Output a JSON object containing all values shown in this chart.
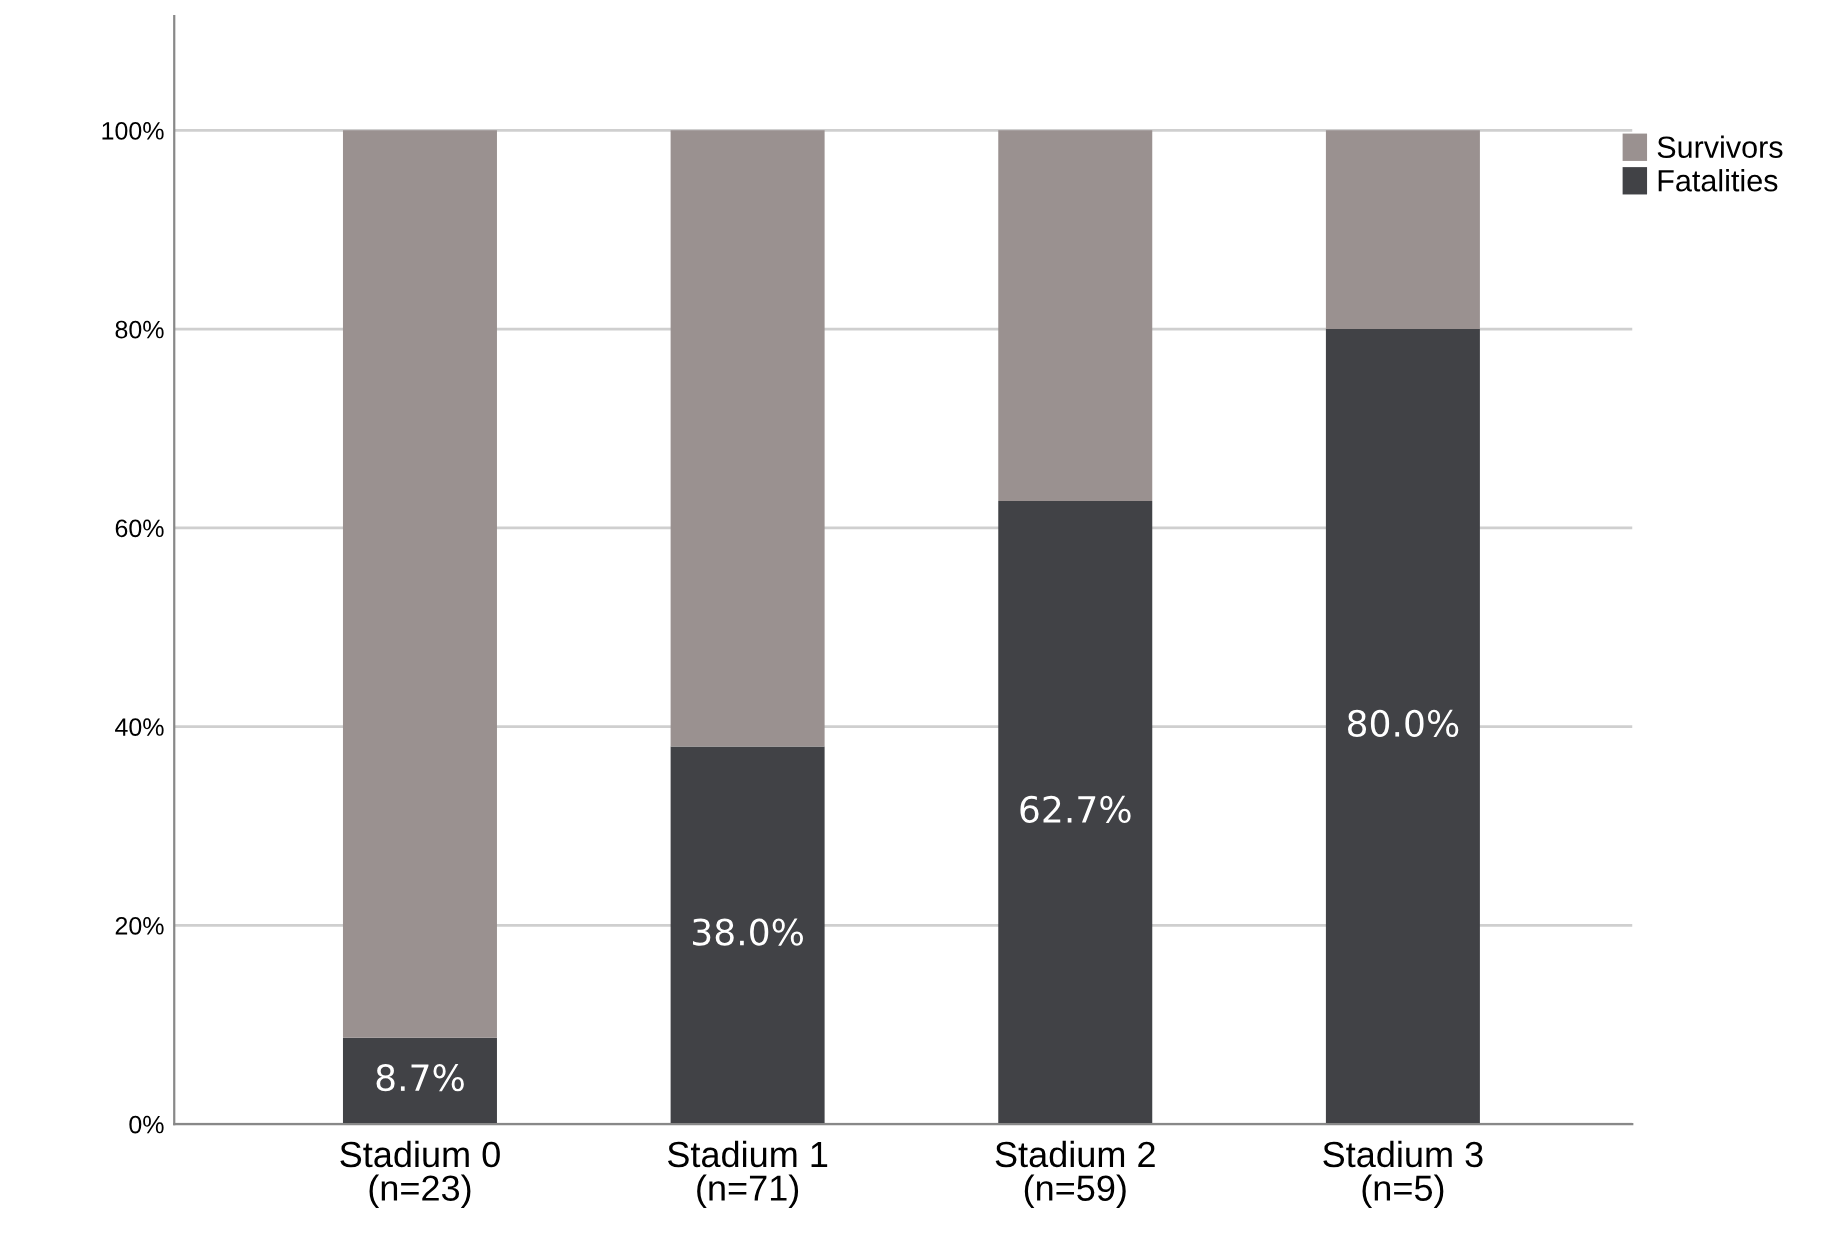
{
  "chart_data": {
    "type": "bar",
    "stacked": true,
    "categories": [
      "Stadium 0\n(n=23)",
      "Stadium 1\n(n=71)",
      "Stadium 2\n(n=59)",
      "Stadium 3\n(n=5)"
    ],
    "series": [
      {
        "name": "Fatalities",
        "color": "#414246",
        "values": [
          8.7,
          38.0,
          62.7,
          80.0
        ],
        "value_labels": [
          "8.7%",
          "38.0%",
          "62.7%",
          "80.0%"
        ]
      },
      {
        "name": "Survivors",
        "color": "#9a9190",
        "values": [
          91.3,
          62.0,
          37.3,
          20.0
        ]
      }
    ],
    "ylim": [
      0,
      111.5
    ],
    "yticks": [
      {
        "value": 0,
        "label": "0%"
      },
      {
        "value": 20,
        "label": "20%"
      },
      {
        "value": 40,
        "label": "40%"
      },
      {
        "value": 60,
        "label": "60%"
      },
      {
        "value": 80,
        "label": "80%"
      },
      {
        "value": 100,
        "label": "100%"
      }
    ],
    "grid": "y",
    "legend": "top right"
  }
}
